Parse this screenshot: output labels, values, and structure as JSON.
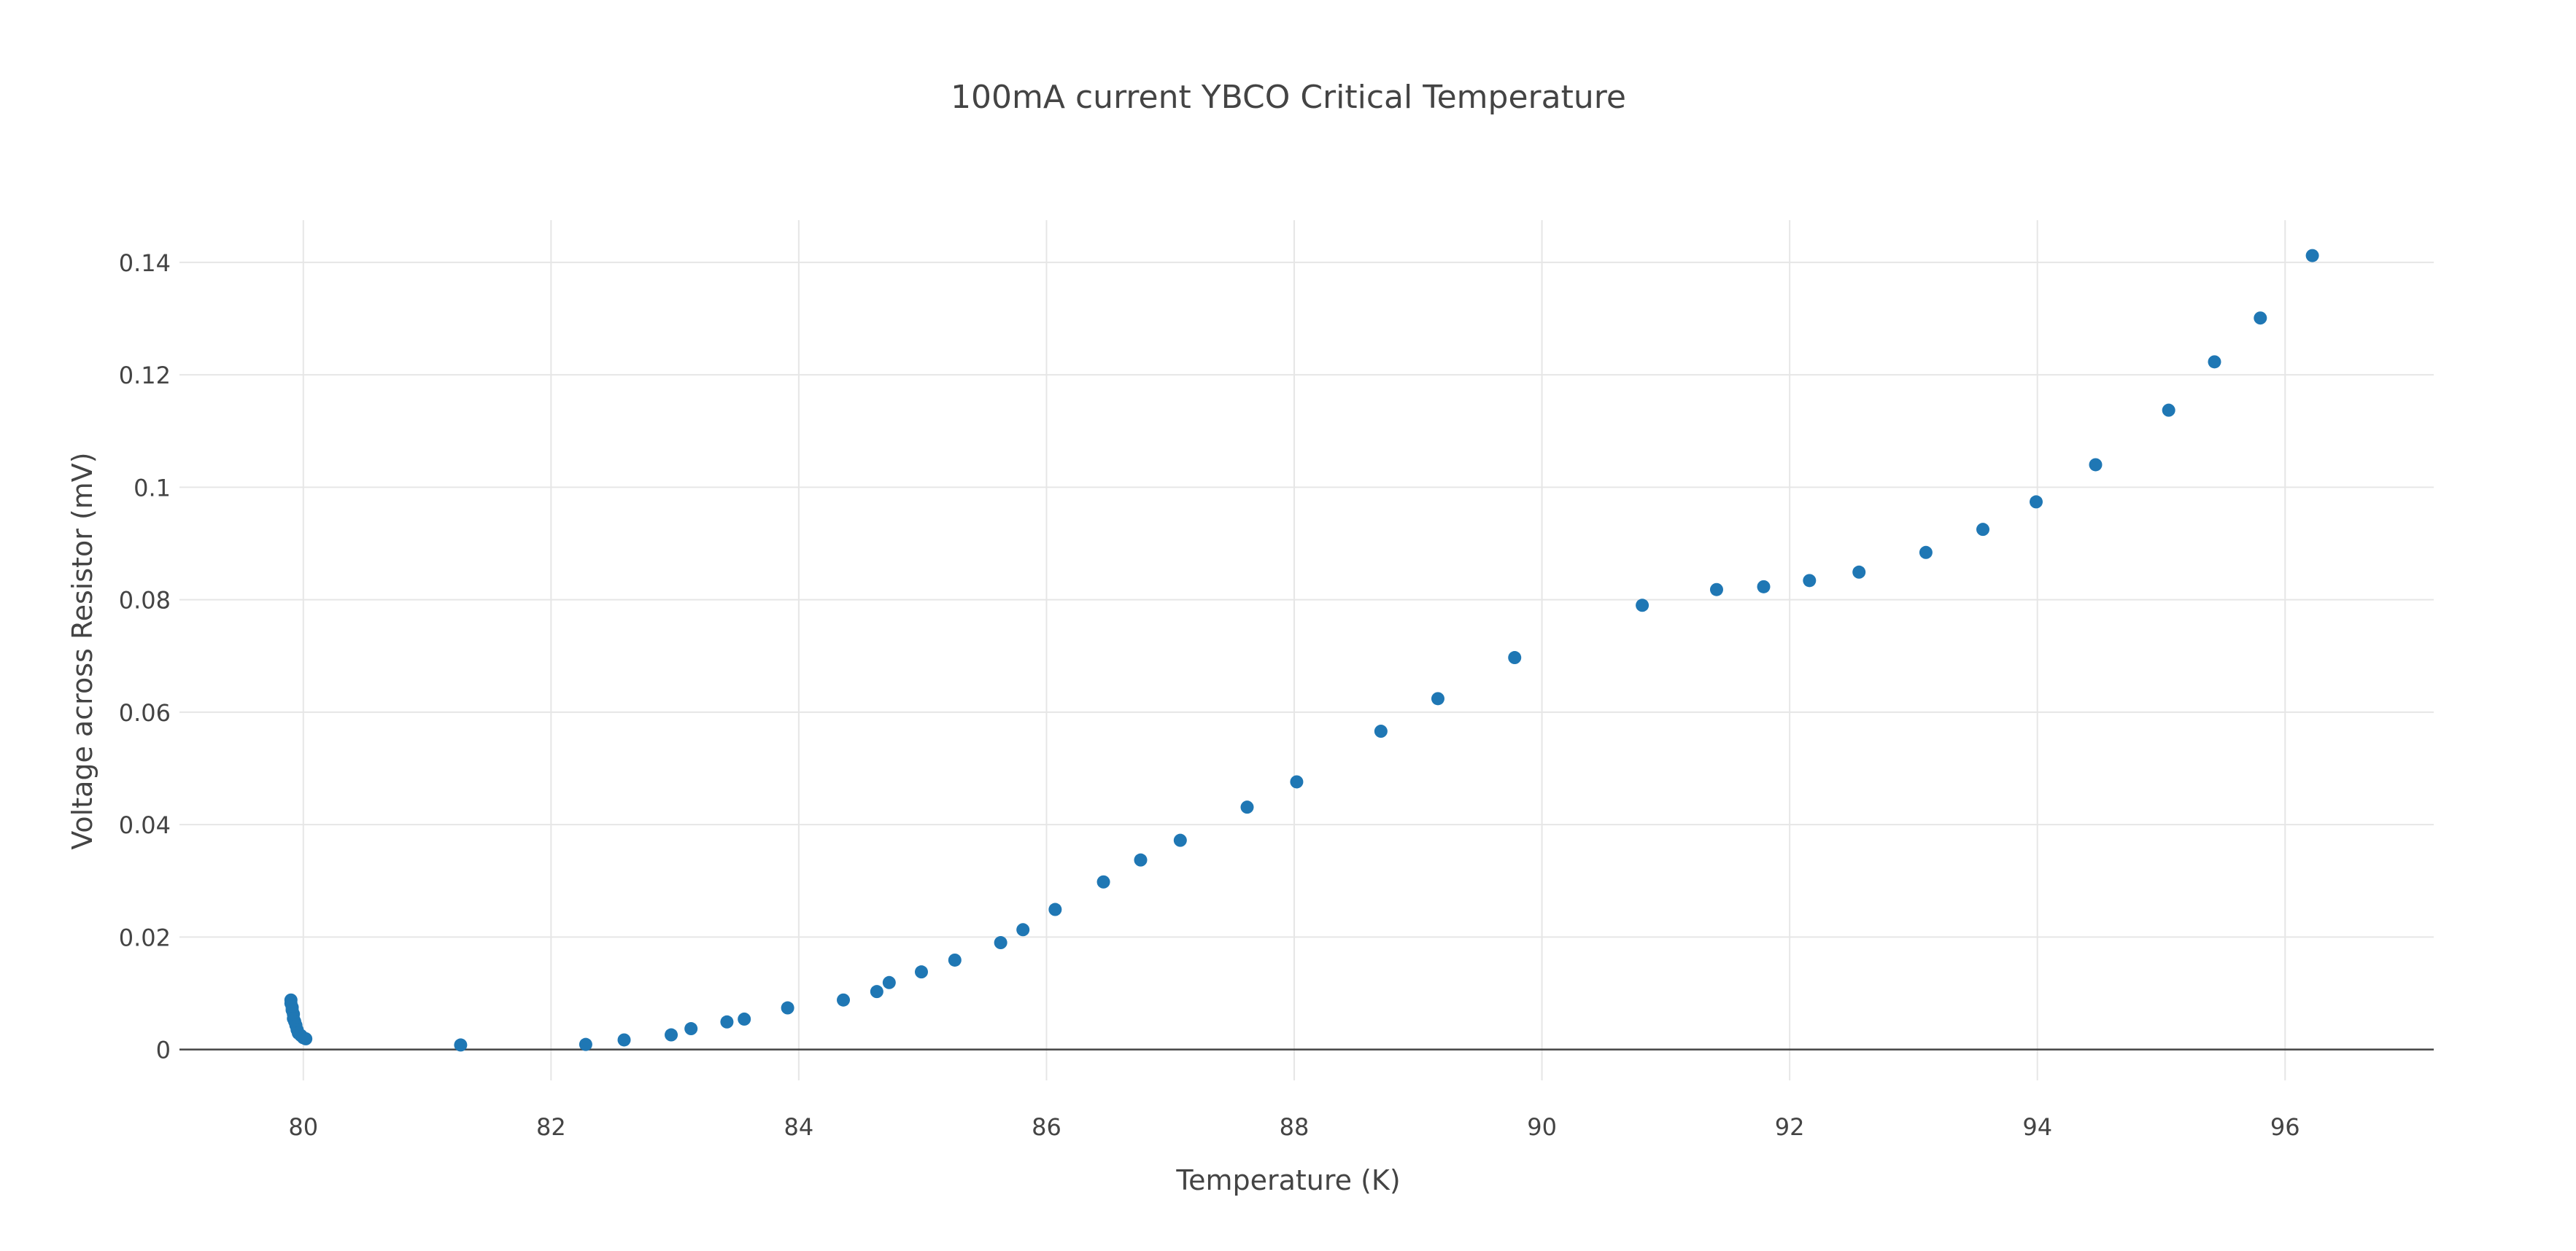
{
  "chart_data": {
    "type": "scatter",
    "title": "100mA current  YBCO Critical Temperature",
    "xlabel": "Temperature (K)",
    "ylabel": "Voltage across Resistor (mV)",
    "xlim": [
      79,
      97.2
    ],
    "ylim": [
      -0.0055,
      0.1475
    ],
    "xticks": [
      80,
      82,
      84,
      86,
      88,
      90,
      92,
      94,
      96
    ],
    "yticks": [
      0,
      0.02,
      0.04,
      0.06,
      0.08,
      0.1,
      0.12,
      0.14
    ],
    "ytick_labels": [
      "0",
      "0.02",
      "0.04",
      "0.06",
      "0.08",
      "0.1",
      "0.12",
      "0.14"
    ],
    "grid": true,
    "marker_color": "#1f77b4",
    "series": [
      {
        "x": [
          79.9,
          79.9,
          79.91,
          79.91,
          79.92,
          79.92,
          79.93,
          79.94,
          79.95,
          79.96,
          79.98,
          80.0,
          80.02,
          81.27,
          82.28,
          82.59,
          82.97,
          83.13,
          83.42,
          83.56,
          83.91,
          84.36,
          84.63,
          84.73,
          84.99,
          85.26,
          85.63,
          85.81,
          86.07,
          86.46,
          86.76,
          87.08,
          87.62,
          88.02,
          88.7,
          89.16,
          89.78,
          90.81,
          91.41,
          91.79,
          92.16,
          92.56,
          93.1,
          93.56,
          93.99,
          94.47,
          95.06,
          95.43,
          95.8,
          96.22
        ],
        "y": [
          0.0088,
          0.0082,
          0.0075,
          0.007,
          0.0063,
          0.0055,
          0.005,
          0.0043,
          0.0035,
          0.0029,
          0.0025,
          0.0021,
          0.0019,
          0.0008,
          0.0009,
          0.0017,
          0.0026,
          0.0037,
          0.0049,
          0.0054,
          0.0074,
          0.0088,
          0.0103,
          0.0119,
          0.0138,
          0.0159,
          0.019,
          0.0213,
          0.0249,
          0.0298,
          0.0337,
          0.0372,
          0.0431,
          0.0476,
          0.0566,
          0.0624,
          0.0697,
          0.079,
          0.0818,
          0.0823,
          0.0834,
          0.0849,
          0.0884,
          0.0925,
          0.0974,
          0.104,
          0.1137,
          0.1223,
          0.1301,
          0.1412
        ]
      }
    ]
  }
}
